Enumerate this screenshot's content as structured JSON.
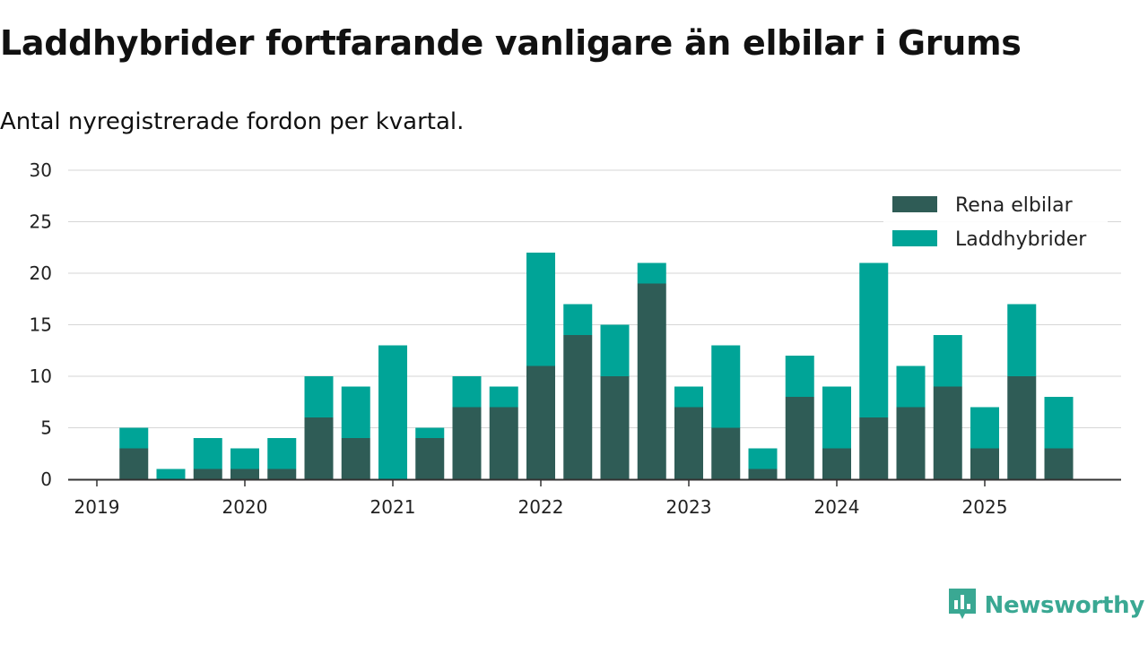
{
  "chart_data": {
    "type": "bar",
    "stacked": true,
    "title": "Laddhybrider fortfarande vanligare än elbilar i Grums",
    "subtitle": "Antal nyregistrerade fordon per kvartal.",
    "xlabel": "",
    "ylabel": "",
    "ylim": [
      0,
      30
    ],
    "yticks": [
      0,
      5,
      10,
      15,
      20,
      25,
      30
    ],
    "xticks": [
      "2019",
      "2020",
      "2021",
      "2022",
      "2023",
      "2024",
      "2025"
    ],
    "categories": [
      "2019 Q1",
      "2019 Q2",
      "2019 Q3",
      "2019 Q4",
      "2020 Q1",
      "2020 Q2",
      "2020 Q3",
      "2020 Q4",
      "2021 Q1",
      "2021 Q2",
      "2021 Q3",
      "2021 Q4",
      "2022 Q1",
      "2022 Q2",
      "2022 Q3",
      "2022 Q4",
      "2023 Q1",
      "2023 Q2",
      "2023 Q3",
      "2023 Q4",
      "2024 Q1",
      "2024 Q2",
      "2024 Q3",
      "2024 Q4",
      "2025 Q1",
      "2025 Q2",
      "2025 Q3"
    ],
    "series": [
      {
        "name": "Rena elbilar",
        "color": "#2f5c56",
        "values": [
          0,
          3,
          0,
          1,
          1,
          1,
          6,
          4,
          0,
          4,
          7,
          7,
          11,
          14,
          10,
          19,
          7,
          5,
          1,
          8,
          3,
          6,
          7,
          9,
          3,
          10,
          3
        ]
      },
      {
        "name": "Laddhybrider",
        "color": "#00a497",
        "values": [
          0,
          2,
          1,
          3,
          2,
          3,
          4,
          5,
          13,
          1,
          3,
          2,
          11,
          3,
          5,
          2,
          2,
          8,
          2,
          4,
          6,
          15,
          4,
          5,
          4,
          7,
          5
        ]
      }
    ],
    "grid": true,
    "legend_position": "top-right"
  },
  "branding": {
    "name": "Newsworthy",
    "color": "#3aa893"
  }
}
